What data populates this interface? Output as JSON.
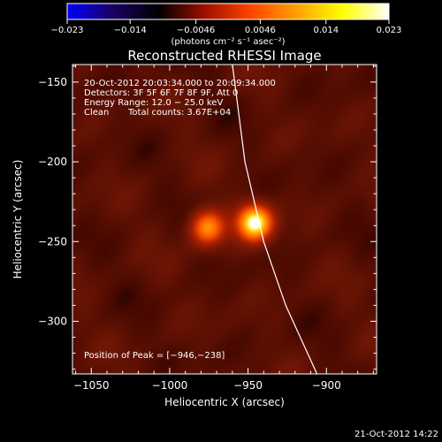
{
  "chart_data": {
    "type": "heatmap",
    "title": "Reconstructed RHESSI Image",
    "xlabel": "Heliocentric X (arcsec)",
    "ylabel": "Heliocentric Y (arcsec)",
    "xlim": [
      -1062,
      -868
    ],
    "ylim": [
      -333,
      -139
    ],
    "xticks": [
      -1050,
      -1000,
      -950,
      -900
    ],
    "yticks": [
      -150,
      -200,
      -250,
      -300
    ],
    "colorbar": {
      "min": -0.023,
      "max": 0.023,
      "ticks": [
        -0.023,
        -0.014,
        -0.0046,
        0.0046,
        0.014,
        0.023
      ],
      "tick_labels": [
        "−0.023",
        "−0.014",
        "−0.0046",
        "0.0046",
        "0.014",
        "0.023"
      ],
      "label": "(photons cm⁻² s⁻¹ asec⁻²)",
      "colormap": [
        "#0000ff",
        "#1a0060",
        "#000000",
        "#a01000",
        "#ff4400",
        "#ffa000",
        "#ffff00",
        "#ffffff"
      ]
    },
    "sources": [
      {
        "x": -946,
        "y": -238,
        "peak": 0.023
      },
      {
        "x": -976,
        "y": -241,
        "peak": 0.015
      }
    ],
    "background": 0.0012,
    "limb": [
      [
        -960,
        -139
      ],
      [
        -952,
        -200
      ],
      [
        -940,
        -250
      ],
      [
        -926,
        -290
      ],
      [
        -906,
        -333
      ]
    ],
    "annotations": {
      "time_range": "20-Oct-2012 20:03:34.000 to 20:09:34.000",
      "detectors": "Detectors: 3F 5F 6F 7F 8F 9F, Att 0",
      "energy": "Energy Range: 12.0 − 25.0 keV",
      "clean": "Clean",
      "total_counts": "Total counts: 3.67E+04",
      "peak_position": "Position of Peak = [−946,−238]"
    },
    "timestamp": "21-Oct-2012 14:22"
  },
  "colors": {
    "background": "#000000",
    "text": "#ffffff",
    "limb": "#ffffff"
  }
}
